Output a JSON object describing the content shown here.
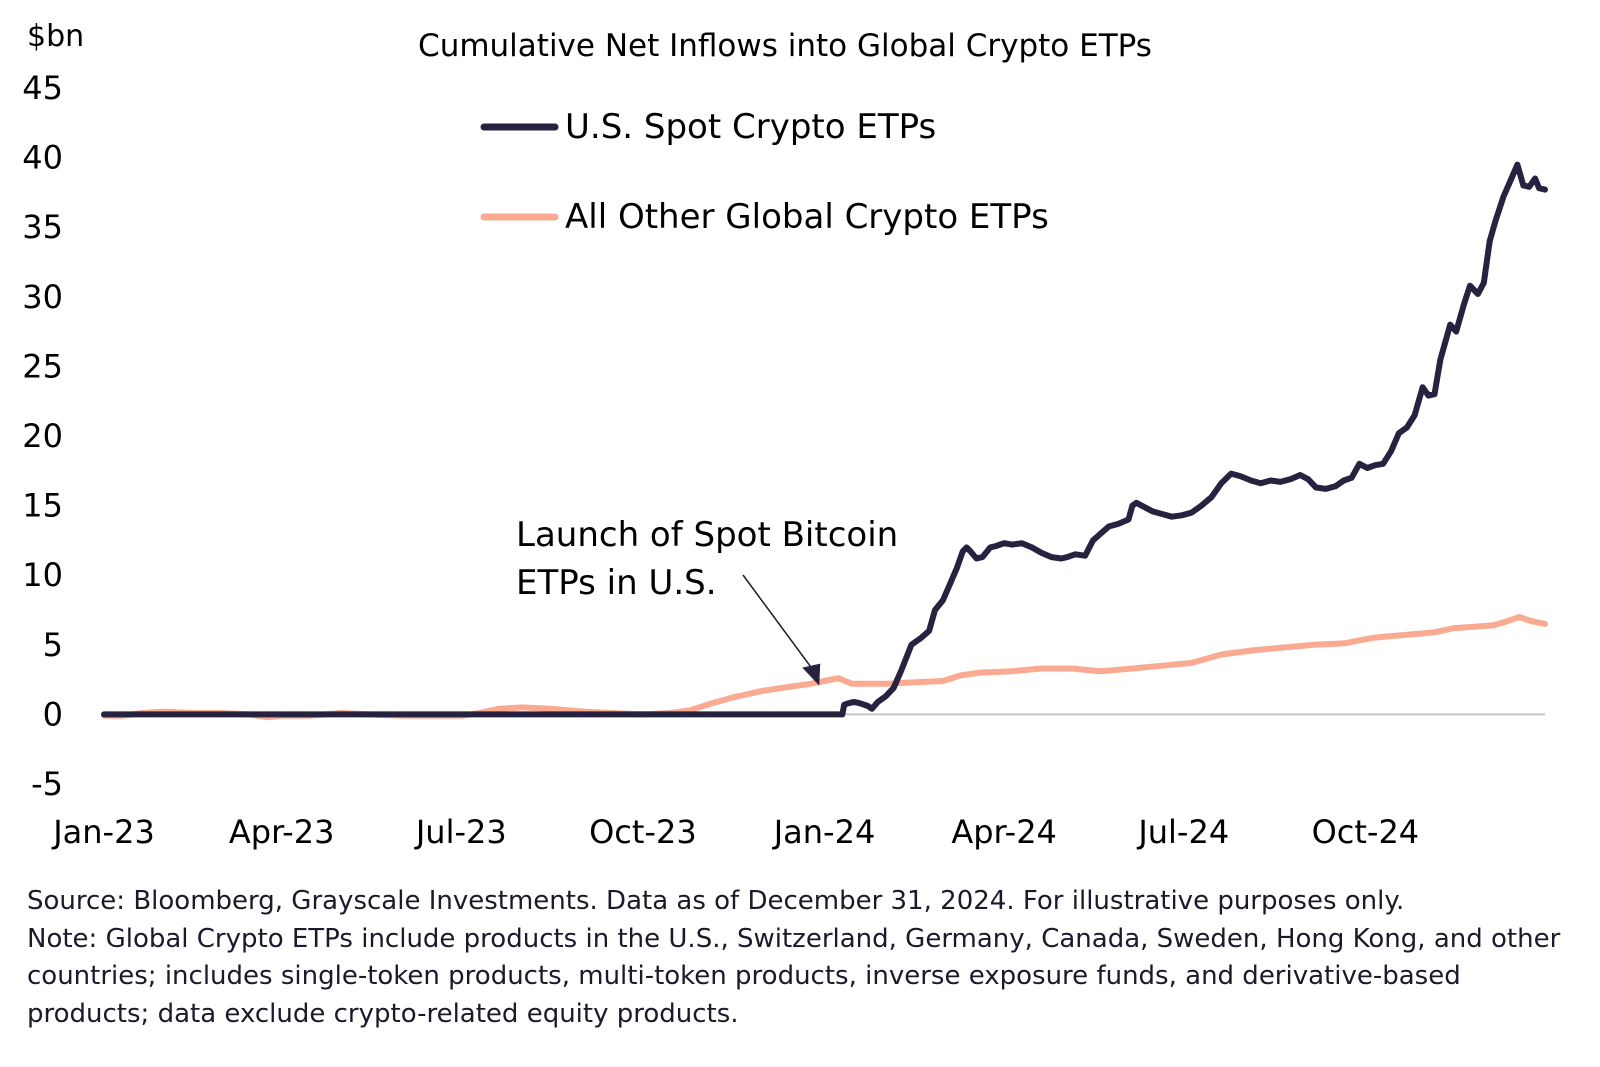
{
  "chart_data": {
    "type": "line",
    "title": "Cumulative Net Inflows into Global Crypto ETPs",
    "ylabel": "$bn",
    "ylim": [
      -5,
      45
    ],
    "yticks": [
      -5,
      0,
      5,
      10,
      15,
      20,
      25,
      30,
      35,
      40,
      45
    ],
    "xlim": [
      "2023-01-01",
      "2024-12-31"
    ],
    "xticks": [
      {
        "date": "2023-01-01",
        "label": "Jan-23"
      },
      {
        "date": "2023-04-01",
        "label": "Apr-23"
      },
      {
        "date": "2023-07-01",
        "label": "Jul-23"
      },
      {
        "date": "2023-10-01",
        "label": "Oct-23"
      },
      {
        "date": "2024-01-01",
        "label": "Jan-24"
      },
      {
        "date": "2024-04-01",
        "label": "Apr-24"
      },
      {
        "date": "2024-07-01",
        "label": "Jul-24"
      },
      {
        "date": "2024-10-01",
        "label": "Oct-24"
      }
    ],
    "grid": false,
    "legend_position": "top-center",
    "series": [
      {
        "name": "U.S. Spot Crypto ETPs",
        "color": "#26223f",
        "points": [
          [
            "2023-01-01",
            0
          ],
          [
            "2024-01-10",
            0
          ],
          [
            "2024-01-11",
            0.7
          ],
          [
            "2024-01-13",
            0.8
          ],
          [
            "2024-01-16",
            0.9
          ],
          [
            "2024-01-19",
            0.8
          ],
          [
            "2024-01-23",
            0.6
          ],
          [
            "2024-01-25",
            0.4
          ],
          [
            "2024-01-28",
            0.9
          ],
          [
            "2024-02-01",
            1.3
          ],
          [
            "2024-02-05",
            1.9
          ],
          [
            "2024-02-09",
            3.2
          ],
          [
            "2024-02-14",
            5.0
          ],
          [
            "2024-02-19",
            5.5
          ],
          [
            "2024-02-23",
            6.0
          ],
          [
            "2024-02-26",
            7.5
          ],
          [
            "2024-03-01",
            8.2
          ],
          [
            "2024-03-05",
            9.5
          ],
          [
            "2024-03-08",
            10.5
          ],
          [
            "2024-03-11",
            11.7
          ],
          [
            "2024-03-13",
            12.0
          ],
          [
            "2024-03-15",
            11.7
          ],
          [
            "2024-03-18",
            11.2
          ],
          [
            "2024-03-21",
            11.3
          ],
          [
            "2024-03-25",
            12.0
          ],
          [
            "2024-03-28",
            12.1
          ],
          [
            "2024-04-01",
            12.3
          ],
          [
            "2024-04-05",
            12.2
          ],
          [
            "2024-04-10",
            12.3
          ],
          [
            "2024-04-15",
            12.0
          ],
          [
            "2024-04-20",
            11.6
          ],
          [
            "2024-04-25",
            11.3
          ],
          [
            "2024-04-30",
            11.2
          ],
          [
            "2024-05-03",
            11.3
          ],
          [
            "2024-05-07",
            11.5
          ],
          [
            "2024-05-12",
            11.4
          ],
          [
            "2024-05-16",
            12.5
          ],
          [
            "2024-05-20",
            13.0
          ],
          [
            "2024-05-24",
            13.5
          ],
          [
            "2024-05-29",
            13.7
          ],
          [
            "2024-06-03",
            14.0
          ],
          [
            "2024-06-05",
            15.0
          ],
          [
            "2024-06-07",
            15.2
          ],
          [
            "2024-06-11",
            14.9
          ],
          [
            "2024-06-15",
            14.6
          ],
          [
            "2024-06-20",
            14.4
          ],
          [
            "2024-06-25",
            14.2
          ],
          [
            "2024-06-30",
            14.3
          ],
          [
            "2024-07-05",
            14.5
          ],
          [
            "2024-07-10",
            15.0
          ],
          [
            "2024-07-15",
            15.6
          ],
          [
            "2024-07-20",
            16.6
          ],
          [
            "2024-07-25",
            17.3
          ],
          [
            "2024-07-30",
            17.1
          ],
          [
            "2024-08-04",
            16.8
          ],
          [
            "2024-08-09",
            16.6
          ],
          [
            "2024-08-14",
            16.8
          ],
          [
            "2024-08-19",
            16.7
          ],
          [
            "2024-08-24",
            16.9
          ],
          [
            "2024-08-29",
            17.2
          ],
          [
            "2024-09-02",
            16.9
          ],
          [
            "2024-09-06",
            16.3
          ],
          [
            "2024-09-11",
            16.2
          ],
          [
            "2024-09-16",
            16.4
          ],
          [
            "2024-09-20",
            16.8
          ],
          [
            "2024-09-24",
            17.0
          ],
          [
            "2024-09-28",
            18.0
          ],
          [
            "2024-10-02",
            17.7
          ],
          [
            "2024-10-06",
            17.9
          ],
          [
            "2024-10-10",
            18.0
          ],
          [
            "2024-10-14",
            18.9
          ],
          [
            "2024-10-18",
            20.2
          ],
          [
            "2024-10-22",
            20.6
          ],
          [
            "2024-10-26",
            21.5
          ],
          [
            "2024-10-30",
            23.5
          ],
          [
            "2024-11-02",
            22.9
          ],
          [
            "2024-11-05",
            23.0
          ],
          [
            "2024-11-08",
            25.5
          ],
          [
            "2024-11-11",
            27.0
          ],
          [
            "2024-11-13",
            28.0
          ],
          [
            "2024-11-16",
            27.5
          ],
          [
            "2024-11-20",
            29.5
          ],
          [
            "2024-11-23",
            30.8
          ],
          [
            "2024-11-27",
            30.2
          ],
          [
            "2024-11-30",
            31.0
          ],
          [
            "2024-12-03",
            34.0
          ],
          [
            "2024-12-06",
            35.5
          ],
          [
            "2024-12-10",
            37.2
          ],
          [
            "2024-12-14",
            38.5
          ],
          [
            "2024-12-17",
            39.5
          ],
          [
            "2024-12-20",
            38.0
          ],
          [
            "2024-12-23",
            37.9
          ],
          [
            "2024-12-26",
            38.5
          ],
          [
            "2024-12-28",
            37.8
          ],
          [
            "2024-12-31",
            37.7
          ]
        ]
      },
      {
        "name": "All Other Global Crypto ETPs",
        "color": "#f9aa91",
        "points": [
          [
            "2023-01-01",
            -0.1
          ],
          [
            "2023-01-10",
            -0.1
          ],
          [
            "2023-01-20",
            0.1
          ],
          [
            "2023-02-01",
            0.2
          ],
          [
            "2023-02-15",
            0.1
          ],
          [
            "2023-03-01",
            0.1
          ],
          [
            "2023-03-15",
            0.0
          ],
          [
            "2023-03-25",
            -0.2
          ],
          [
            "2023-04-01",
            -0.1
          ],
          [
            "2023-04-15",
            -0.1
          ],
          [
            "2023-05-01",
            0.1
          ],
          [
            "2023-05-15",
            0.0
          ],
          [
            "2023-06-01",
            -0.1
          ],
          [
            "2023-06-15",
            -0.1
          ],
          [
            "2023-07-01",
            -0.1
          ],
          [
            "2023-07-10",
            0.1
          ],
          [
            "2023-07-20",
            0.4
          ],
          [
            "2023-08-01",
            0.5
          ],
          [
            "2023-08-15",
            0.4
          ],
          [
            "2023-09-01",
            0.2
          ],
          [
            "2023-09-15",
            0.1
          ],
          [
            "2023-10-01",
            0.0
          ],
          [
            "2023-10-15",
            0.1
          ],
          [
            "2023-10-25",
            0.3
          ],
          [
            "2023-11-05",
            0.8
          ],
          [
            "2023-11-15",
            1.2
          ],
          [
            "2023-12-01",
            1.7
          ],
          [
            "2023-12-15",
            2.0
          ],
          [
            "2023-12-25",
            2.2
          ],
          [
            "2024-01-01",
            2.4
          ],
          [
            "2024-01-08",
            2.6
          ],
          [
            "2024-01-15",
            2.2
          ],
          [
            "2024-01-25",
            2.2
          ],
          [
            "2024-02-01",
            2.2
          ],
          [
            "2024-02-15",
            2.3
          ],
          [
            "2024-03-01",
            2.4
          ],
          [
            "2024-03-10",
            2.8
          ],
          [
            "2024-03-20",
            3.0
          ],
          [
            "2024-04-05",
            3.1
          ],
          [
            "2024-04-20",
            3.3
          ],
          [
            "2024-05-05",
            3.3
          ],
          [
            "2024-05-20",
            3.1
          ],
          [
            "2024-06-05",
            3.3
          ],
          [
            "2024-06-20",
            3.5
          ],
          [
            "2024-07-05",
            3.7
          ],
          [
            "2024-07-20",
            4.3
          ],
          [
            "2024-08-05",
            4.6
          ],
          [
            "2024-08-20",
            4.8
          ],
          [
            "2024-09-05",
            5.0
          ],
          [
            "2024-09-20",
            5.1
          ],
          [
            "2024-10-05",
            5.5
          ],
          [
            "2024-10-20",
            5.7
          ],
          [
            "2024-11-05",
            5.9
          ],
          [
            "2024-11-15",
            6.2
          ],
          [
            "2024-11-25",
            6.3
          ],
          [
            "2024-12-05",
            6.4
          ],
          [
            "2024-12-12",
            6.7
          ],
          [
            "2024-12-18",
            7.0
          ],
          [
            "2024-12-24",
            6.7
          ],
          [
            "2024-12-31",
            6.5
          ]
        ]
      }
    ],
    "annotation": {
      "lines": [
        "Launch of Spot Bitcoin",
        "ETPs in U.S."
      ],
      "target_date": "2024-01-11",
      "target_value": 2.5
    }
  },
  "footnotes": [
    "Source: Bloomberg, Grayscale Investments. Data as of December 31, 2024. For illustrative purposes only.",
    "Note: Global Crypto ETPs include products in the U.S., Switzerland, Germany, Canada, Sweden, Hong Kong, and other countries; includes single-token products, multi-token products, inverse exposure funds, and derivative-based products; data exclude crypto-related equity products."
  ]
}
